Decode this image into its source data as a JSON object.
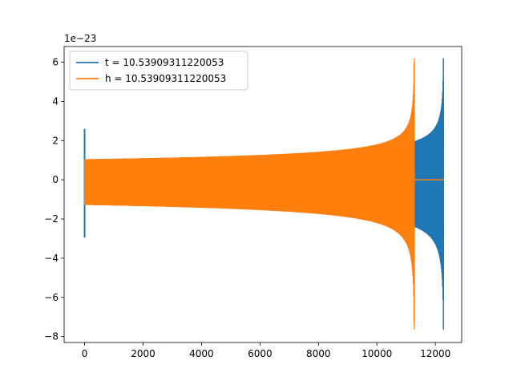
{
  "chart_data": {
    "type": "line",
    "title": "",
    "xlabel": "",
    "ylabel": "",
    "xlim": [
      -700,
      12900
    ],
    "ylim": [
      -8.3,
      6.8
    ],
    "y_offset_label": "1e−23",
    "x_ticks": [
      0,
      2000,
      4000,
      6000,
      8000,
      10000,
      12000
    ],
    "x_tick_labels": [
      "0",
      "2000",
      "4000",
      "6000",
      "8000",
      "10000",
      "12000"
    ],
    "y_ticks": [
      -8,
      -6,
      -4,
      -2,
      0,
      2,
      4,
      6
    ],
    "y_tick_labels": [
      "−8",
      "−6",
      "−4",
      "−2",
      "0",
      "2",
      "4",
      "6"
    ],
    "grid": false,
    "legend_position": "upper-left",
    "series": [
      {
        "name": "t = 10.53909311220053",
        "color": "#1f77b4",
        "description": "oscillating chirp signal",
        "start": 0,
        "end": 12280,
        "initial_spike": [
          -2.95,
          2.6
        ],
        "start_amplitude": 1.05,
        "peak_max": 6.2,
        "peak_min": -7.65
      },
      {
        "name": "h = 10.53909311220053",
        "color": "#ff7f0e",
        "description": "oscillating chirp signal",
        "start": 0,
        "end": 11280,
        "start_amplitude": 1.05,
        "peak_max": 6.2,
        "peak_min": -7.65,
        "flat_after_end": 12280
      }
    ]
  }
}
